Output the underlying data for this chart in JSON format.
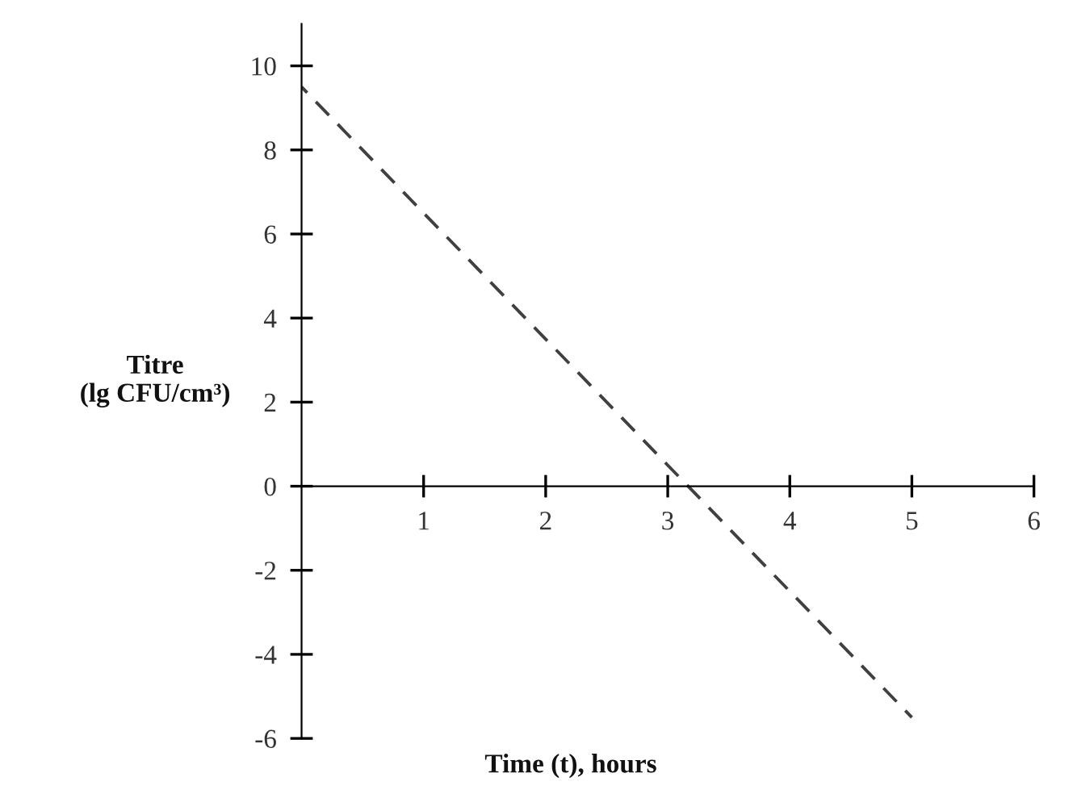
{
  "chart_data": {
    "type": "line",
    "xlabel": "Time (t), hours",
    "ylabel": "Titre\n(lg CFU/cm³)",
    "x": [
      0,
      5
    ],
    "series": [
      {
        "color": "#404040",
        "values": [
          9.5,
          -5.5
        ]
      }
    ],
    "line_style": "dashed",
    "marker": "none",
    "grid": false,
    "legend": false,
    "xlim": [
      0,
      6
    ],
    "ylim": [
      -6,
      11
    ],
    "xticks": [
      1,
      2,
      3,
      4,
      5,
      6
    ],
    "yticks": [
      -6,
      -4,
      -2,
      0,
      2,
      4,
      6,
      8,
      10
    ]
  }
}
